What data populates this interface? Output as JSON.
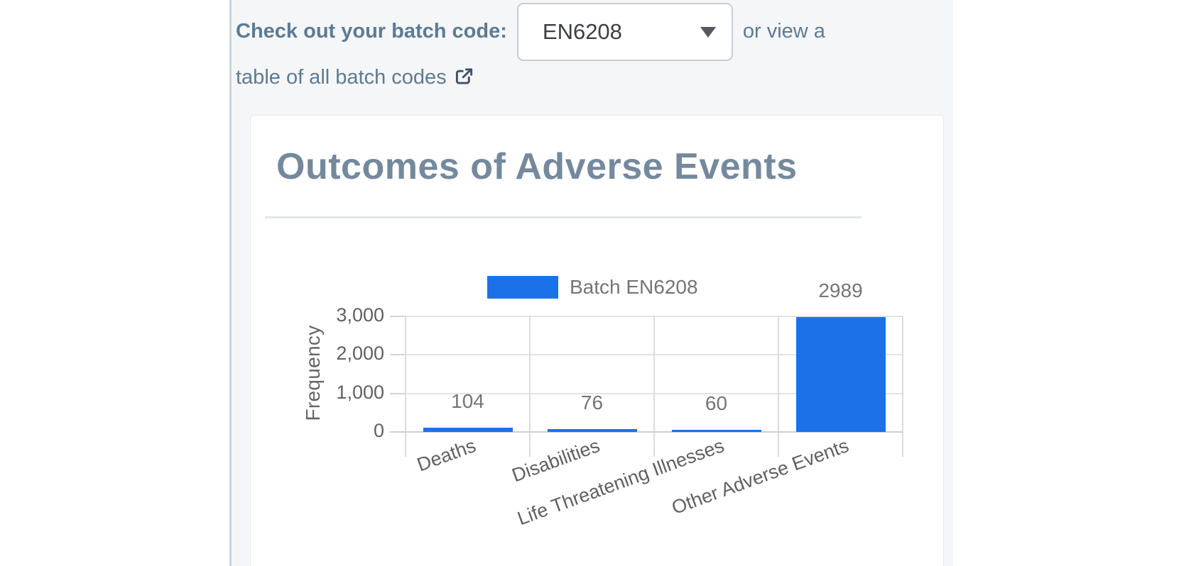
{
  "header": {
    "label": "Check out your batch code:",
    "select_value": "EN6208",
    "after_select": "or view a",
    "link_line2": "table of all batch codes"
  },
  "card": {
    "title": "Outcomes of Adverse Events"
  },
  "chart_data": {
    "type": "bar",
    "title": "Outcomes of Adverse Events",
    "categories": [
      "Deaths",
      "Disabilities",
      "Life Threatening Illnesses",
      "Other Adverse Events"
    ],
    "series": [
      {
        "name": "Batch EN6208",
        "values": [
          104,
          76,
          60,
          2989
        ]
      }
    ],
    "value_labels": [
      "104",
      "76",
      "60",
      "2989"
    ],
    "xlabel": "",
    "ylabel": "Frequency",
    "ylim": [
      0,
      3000
    ],
    "yticks": [
      0,
      1000,
      2000,
      3000
    ],
    "ytick_labels": [
      "0",
      "1,000",
      "2,000",
      "3,000"
    ],
    "legend_position": "top",
    "grid": true,
    "bar_color": "#1b72e8"
  },
  "colors": {
    "accent_blue": "#1b72e8",
    "slate_text": "#5d7b94",
    "title_slate": "#75899d",
    "content_bg": "#f5f6f7",
    "chart_text_gray": "#757575",
    "tick_text_gray": "#616161"
  }
}
